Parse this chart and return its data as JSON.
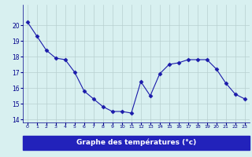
{
  "hours": [
    0,
    1,
    2,
    3,
    4,
    5,
    6,
    7,
    8,
    9,
    10,
    11,
    12,
    13,
    14,
    15,
    16,
    17,
    18,
    19,
    20,
    21,
    22,
    23
  ],
  "temperatures": [
    20.2,
    19.3,
    18.4,
    17.9,
    17.8,
    17.0,
    15.8,
    15.3,
    14.8,
    14.5,
    14.5,
    14.4,
    16.4,
    15.5,
    16.9,
    17.5,
    17.6,
    17.8,
    17.8,
    17.8,
    17.2,
    16.3,
    15.6,
    15.3
  ],
  "line_color": "#1a1aaa",
  "marker": "D",
  "marker_size": 2.5,
  "bg_color": "#d8f0f0",
  "grid_color": "#b8d0d0",
  "tick_label_color": "#00008b",
  "xlabel": "Graphe des températures (°c)",
  "xlabel_bg": "#2222bb",
  "xlabel_color": "#ffffff",
  "ylim": [
    14,
    21
  ],
  "yticks": [
    14,
    15,
    16,
    17,
    18,
    19,
    20
  ],
  "figsize": [
    3.2,
    2.0
  ],
  "dpi": 100
}
